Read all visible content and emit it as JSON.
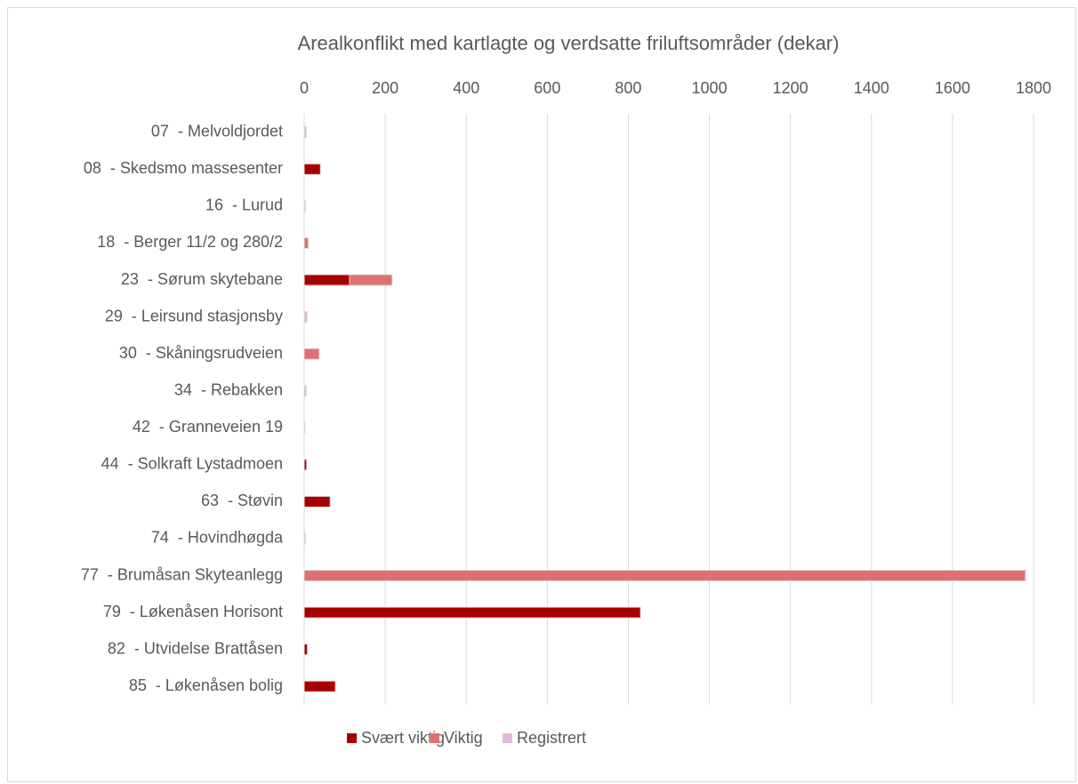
{
  "chart_data": {
    "type": "stacked-barh",
    "title": "Arealkonflikt med kartlagte og verdsatte friluftsområder (dekar)",
    "categories": [
      "07  - Melvoldjordet",
      "08  - Skedsmo massesenter",
      "16  - Lurud",
      "18  - Berger 11/2 og 280/2",
      "23  - Sørum skytebane",
      "29  - Leirsund stasjonsby",
      "30  - Skåningsrudveien",
      "34  - Rebakken",
      "42  - Granneveien 19",
      "44  - Solkraft Lystadmoen",
      "63  - Støvin",
      "74  - Hovindhøgda",
      "77  - Brumåsan Skyteanlegg",
      "79  - Løkenåsen Horisont",
      "82  - Utvidelse Brattåsen",
      "85  - Løkenåsen bolig"
    ],
    "series": [
      {
        "name": "Svært viktig",
        "color": "#a80000",
        "values": [
          0,
          40,
          0,
          0,
          112,
          0,
          0,
          0,
          0,
          6,
          64,
          0,
          0,
          830,
          8,
          77
        ]
      },
      {
        "name": "Viktig",
        "color": "#e07070",
        "values": [
          0,
          0,
          0,
          10,
          105,
          0,
          37,
          0,
          0,
          0,
          0,
          0,
          1780,
          0,
          0,
          0
        ]
      },
      {
        "name": "Registrert",
        "color": "#e3b8d9",
        "values": [
          5,
          0,
          3,
          0,
          0,
          7,
          0,
          5,
          2,
          0,
          0,
          3,
          0,
          0,
          0,
          0
        ]
      }
    ],
    "xlim": [
      0,
      1800
    ],
    "xticks": [
      0,
      200,
      400,
      600,
      800,
      1000,
      1200,
      1400,
      1600,
      1800
    ],
    "grid": true,
    "legend": "bottom"
  }
}
